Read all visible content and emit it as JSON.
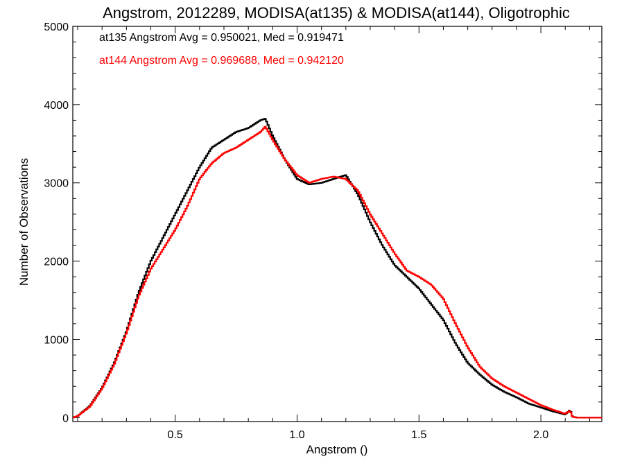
{
  "chart_data": {
    "type": "line",
    "step": true,
    "title": "Angstrom, 2012289, MODISA(at135) & MODISA(at144), Oligotrophic",
    "xlabel": "Angstrom ()",
    "ylabel": "Number of Observations",
    "xlim": [
      0.08,
      2.25
    ],
    "ylim": [
      -50,
      5000
    ],
    "xticks": [
      0.5,
      1.0,
      1.5,
      2.0
    ],
    "xtick_labels": [
      "0.5",
      "1.0",
      "1.5",
      "2.0"
    ],
    "yticks": [
      0,
      1000,
      2000,
      3000,
      4000,
      5000
    ],
    "ytick_labels": [
      "0",
      "1000",
      "2000",
      "3000",
      "4000",
      "5000"
    ],
    "grid": false,
    "legend_position": "top-left",
    "series": [
      {
        "name": "at135",
        "color": "#000000",
        "legend_text": "at135 Angstrom Avg = 0.950021, Med = 0.919471",
        "x": [
          0.08,
          0.1,
          0.15,
          0.2,
          0.25,
          0.3,
          0.35,
          0.4,
          0.45,
          0.5,
          0.55,
          0.6,
          0.65,
          0.7,
          0.75,
          0.8,
          0.85,
          0.87,
          0.9,
          0.95,
          1.0,
          1.05,
          1.1,
          1.15,
          1.2,
          1.25,
          1.3,
          1.35,
          1.4,
          1.45,
          1.5,
          1.55,
          1.6,
          1.65,
          1.7,
          1.75,
          1.8,
          1.85,
          1.9,
          1.95,
          2.0,
          2.05,
          2.1,
          2.12,
          2.13,
          2.15,
          2.2,
          2.25
        ],
        "y": [
          0,
          20,
          150,
          380,
          700,
          1100,
          1600,
          2000,
          2300,
          2600,
          2900,
          3200,
          3450,
          3550,
          3650,
          3700,
          3800,
          3820,
          3600,
          3300,
          3050,
          2980,
          3000,
          3050,
          3100,
          2850,
          2500,
          2200,
          1950,
          1800,
          1650,
          1450,
          1250,
          950,
          700,
          550,
          420,
          330,
          260,
          180,
          130,
          80,
          40,
          100,
          10,
          0,
          0,
          0
        ]
      },
      {
        "name": "at144",
        "color": "#ff0000",
        "legend_text": "at144 Angstrom Avg = 0.969688, Med = 0.942120",
        "x": [
          0.08,
          0.1,
          0.15,
          0.2,
          0.25,
          0.3,
          0.35,
          0.4,
          0.45,
          0.5,
          0.55,
          0.6,
          0.65,
          0.7,
          0.75,
          0.8,
          0.85,
          0.87,
          0.9,
          0.95,
          1.0,
          1.05,
          1.1,
          1.15,
          1.2,
          1.25,
          1.3,
          1.35,
          1.4,
          1.45,
          1.5,
          1.55,
          1.6,
          1.65,
          1.7,
          1.75,
          1.8,
          1.85,
          1.9,
          1.95,
          2.0,
          2.05,
          2.1,
          2.12,
          2.13,
          2.15,
          2.2,
          2.25
        ],
        "y": [
          0,
          20,
          140,
          370,
          680,
          1080,
          1550,
          1900,
          2150,
          2400,
          2700,
          3050,
          3250,
          3380,
          3450,
          3550,
          3650,
          3720,
          3550,
          3300,
          3100,
          3000,
          3050,
          3080,
          3050,
          2900,
          2600,
          2350,
          2100,
          1880,
          1800,
          1700,
          1520,
          1200,
          900,
          650,
          500,
          400,
          320,
          240,
          160,
          100,
          50,
          90,
          10,
          0,
          0,
          0
        ]
      }
    ]
  }
}
